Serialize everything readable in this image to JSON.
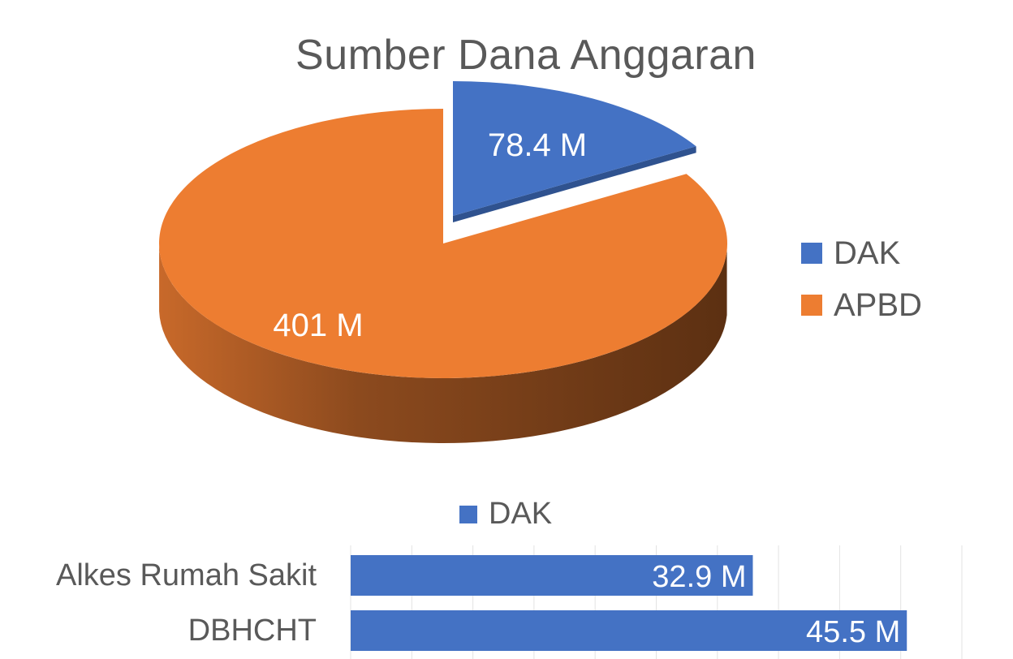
{
  "pie_chart": {
    "title": "Sumber Dana Anggaran",
    "legend_position": "right",
    "colors": {
      "DAK": "#4472C4",
      "APBD": "#ED7D31"
    }
  },
  "bar_chart": {
    "legend_label": "DAK",
    "color": "#4472C4",
    "legend_position": "top"
  },
  "chart_data": [
    {
      "type": "pie",
      "style": "3d",
      "title": "Sumber Dana Anggaran",
      "categories": [
        "DAK",
        "APBD"
      ],
      "values": [
        78.4,
        401
      ],
      "data_labels": [
        "78.4 M",
        "401 M"
      ],
      "exploded": "DAK",
      "legend": "right"
    },
    {
      "type": "bar",
      "orientation": "horizontal",
      "categories": [
        "Alkes Rumah Sakit",
        "DBHCHT"
      ],
      "series": [
        {
          "name": "DAK",
          "values": [
            32.9,
            45.5
          ]
        }
      ],
      "data_labels": [
        "32.9 M",
        "45.5 M"
      ],
      "xlim": [
        0,
        50
      ],
      "grid": true,
      "legend": "top"
    }
  ]
}
